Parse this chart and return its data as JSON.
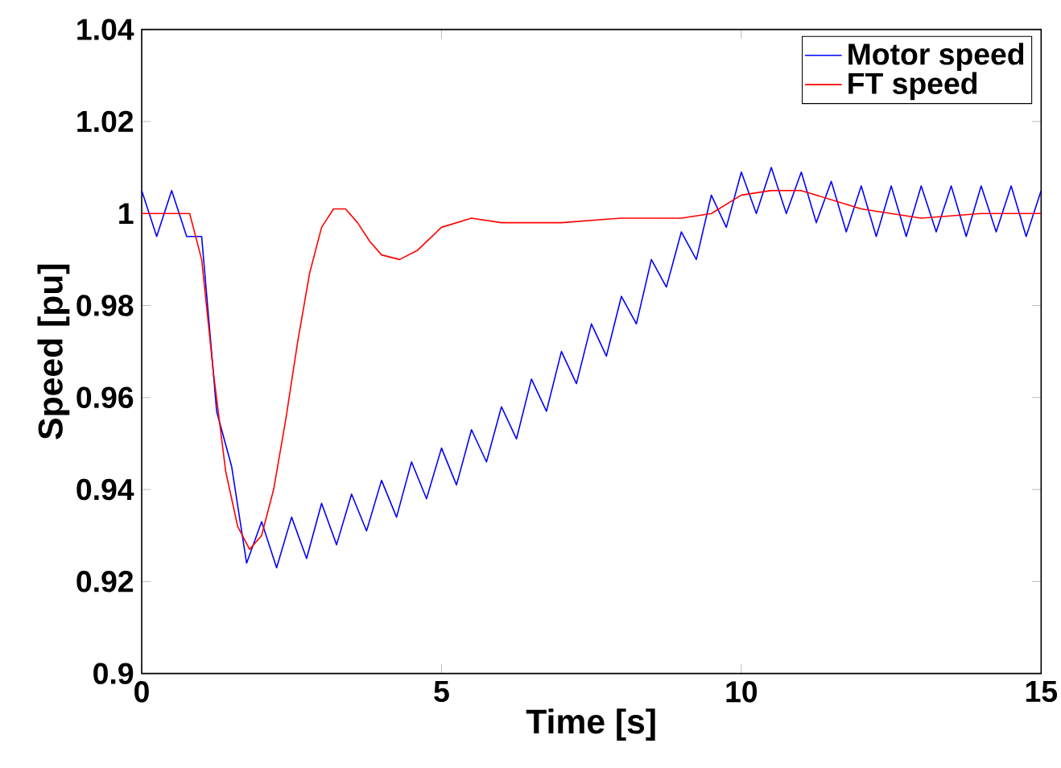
{
  "chart_data": {
    "type": "line",
    "xlabel": "Time [s]",
    "ylabel": "Speed [pu]",
    "xlim": [
      0,
      15
    ],
    "xticks": [
      0,
      5,
      10,
      15
    ],
    "ylim": [
      0.9,
      1.04
    ],
    "yticks": [
      0.9,
      0.92,
      0.94,
      0.96,
      0.98,
      1,
      1.02,
      1.04
    ],
    "legend": "top right",
    "grid": false,
    "series": [
      {
        "name": "Motor speed",
        "color": "#0000ff",
        "x": [
          0,
          0.25,
          0.5,
          0.75,
          1.0,
          1.25,
          1.5,
          1.75,
          2.0,
          2.25,
          2.5,
          2.75,
          3.0,
          3.25,
          3.5,
          3.75,
          4.0,
          4.25,
          4.5,
          4.75,
          5.0,
          5.25,
          5.5,
          5.75,
          6.0,
          6.25,
          6.5,
          6.75,
          7.0,
          7.25,
          7.5,
          7.75,
          8.0,
          8.25,
          8.5,
          8.75,
          9.0,
          9.25,
          9.5,
          9.75,
          10.0,
          10.25,
          10.5,
          10.75,
          11.0,
          11.25,
          11.5,
          11.75,
          12,
          12.25,
          12.5,
          12.75,
          13,
          13.25,
          13.5,
          13.75,
          14,
          14.25,
          14.5,
          14.75,
          15
        ],
        "values": [
          1.005,
          0.995,
          1.005,
          0.995,
          0.995,
          0.957,
          0.945,
          0.924,
          0.933,
          0.923,
          0.934,
          0.925,
          0.937,
          0.928,
          0.939,
          0.931,
          0.942,
          0.934,
          0.946,
          0.938,
          0.949,
          0.941,
          0.953,
          0.946,
          0.958,
          0.951,
          0.964,
          0.957,
          0.97,
          0.963,
          0.976,
          0.969,
          0.982,
          0.976,
          0.99,
          0.984,
          0.996,
          0.99,
          1.004,
          0.997,
          1.009,
          1.0,
          1.01,
          1.0,
          1.009,
          0.998,
          1.007,
          0.996,
          1.006,
          0.995,
          1.006,
          0.995,
          1.006,
          0.996,
          1.006,
          0.995,
          1.006,
          0.996,
          1.006,
          0.995,
          1.005
        ]
      },
      {
        "name": "FT speed",
        "color": "#ff0000",
        "x": [
          0,
          0.8,
          1.0,
          1.2,
          1.4,
          1.6,
          1.8,
          2.0,
          2.2,
          2.4,
          2.6,
          2.8,
          3.0,
          3.2,
          3.4,
          3.6,
          3.8,
          4.0,
          4.3,
          4.6,
          5.0,
          5.5,
          6.0,
          7.0,
          8.0,
          9.0,
          9.5,
          10.0,
          10.5,
          11.0,
          12.0,
          13.0,
          14,
          15
        ],
        "values": [
          1.0,
          1.0,
          0.99,
          0.965,
          0.944,
          0.932,
          0.927,
          0.93,
          0.94,
          0.955,
          0.972,
          0.987,
          0.997,
          1.001,
          1.001,
          0.998,
          0.994,
          0.991,
          0.99,
          0.992,
          0.997,
          0.999,
          0.998,
          0.998,
          0.999,
          0.999,
          1.0,
          1.004,
          1.005,
          1.005,
          1.001,
          0.999,
          1.0,
          1.0
        ]
      }
    ]
  }
}
